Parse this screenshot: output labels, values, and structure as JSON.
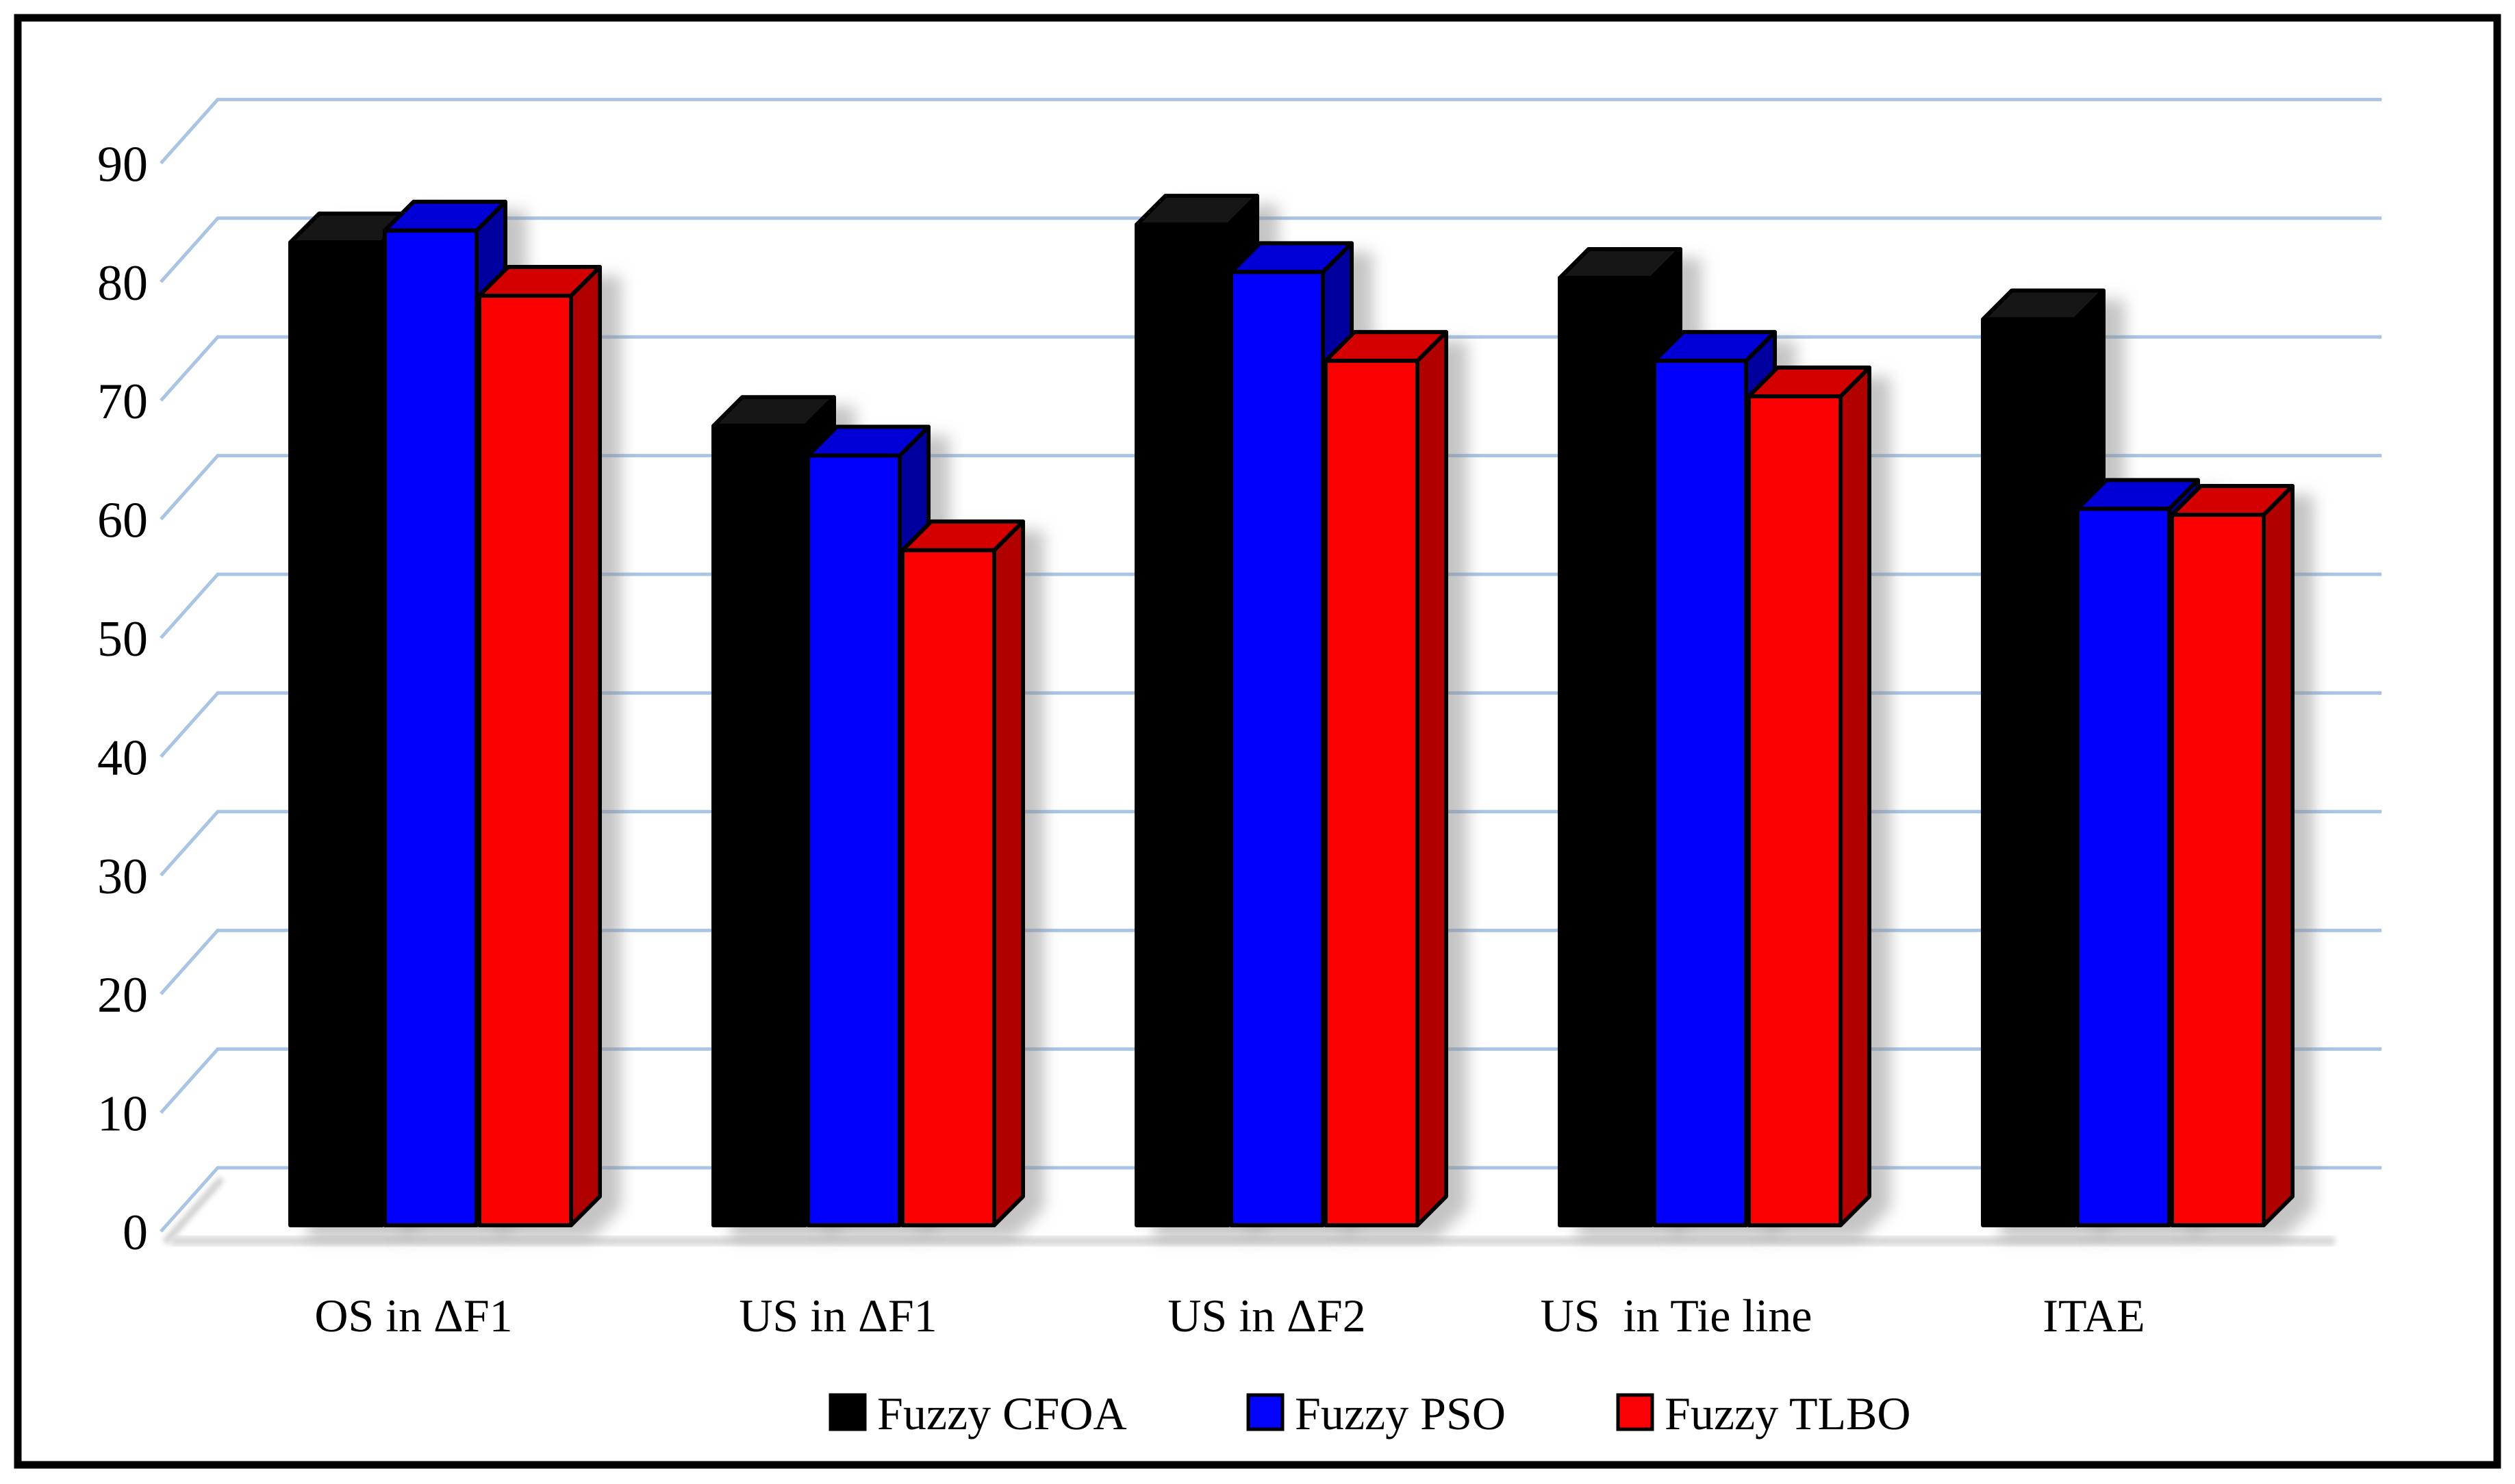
{
  "figure": {
    "background": "#ffffff",
    "border_color": "#000000"
  },
  "chart_data": {
    "type": "bar",
    "projection": "3d-clustered-column",
    "title": "",
    "xlabel": "",
    "ylabel": "",
    "categories": [
      "OS in ΔF1",
      "US in ΔF1",
      "US in ΔF2",
      "US  in Tie line",
      "ITAE"
    ],
    "series": [
      {
        "name": "Fuzzy CFOA",
        "color": "#000000",
        "color_top": "#141414",
        "color_side": "#000000",
        "values": [
          83,
          67.5,
          84.5,
          80,
          76.5
        ]
      },
      {
        "name": "Fuzzy PSO",
        "color": "#0404fc",
        "color_top": "#0000d6",
        "color_side": "#00009f",
        "values": [
          84,
          65,
          80.5,
          73,
          60.5
        ]
      },
      {
        "name": "Fuzzy TLBO",
        "color": "#fa0206",
        "color_top": "#d40000",
        "color_side": "#b00000",
        "values": [
          78.5,
          57,
          73,
          70,
          60
        ]
      }
    ],
    "ylim": [
      0,
      90
    ],
    "ytick_step": 10,
    "yticks": [
      "0",
      "10",
      "20",
      "30",
      "40",
      "50",
      "60",
      "70",
      "80",
      "90"
    ],
    "grid": true,
    "gridline_color": "#a9c4e4",
    "outline_color": "#000000",
    "shadow_color": "#8a8a8a",
    "legend_position": "bottom"
  }
}
